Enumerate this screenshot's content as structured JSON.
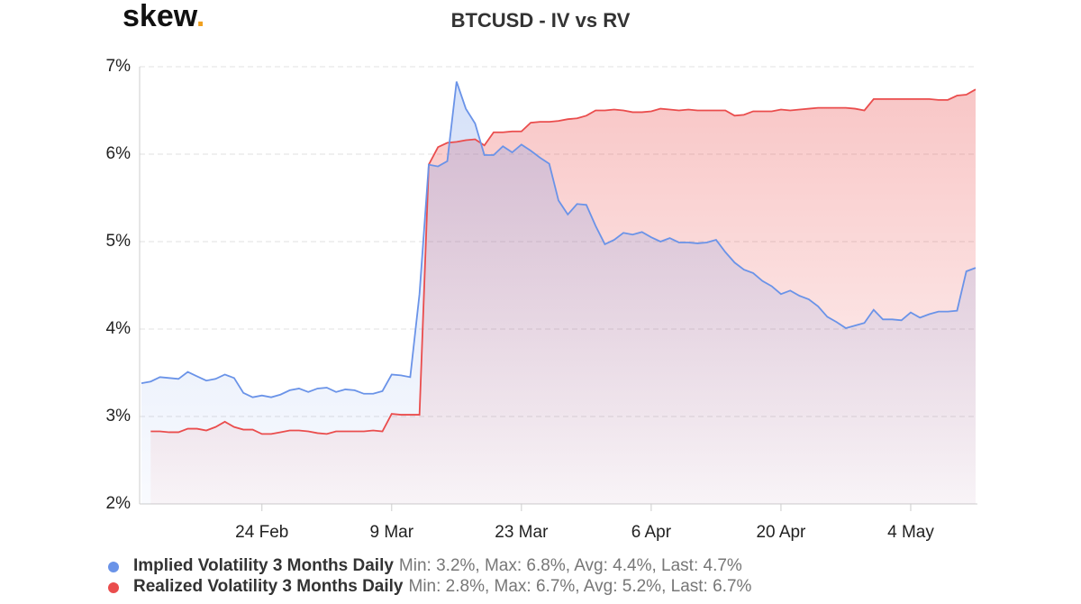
{
  "logo": "skew.",
  "chart_data": {
    "type": "line",
    "title": "BTCUSD - IV vs RV",
    "categories": [
      null,
      null,
      null,
      null,
      null,
      null,
      null,
      null,
      null,
      null,
      null,
      null,
      null,
      "24 Feb",
      null,
      null,
      null,
      null,
      null,
      null,
      null,
      null,
      null,
      null,
      null,
      null,
      null,
      "9 Mar",
      null,
      null,
      null,
      null,
      null,
      null,
      null,
      null,
      null,
      null,
      null,
      null,
      null,
      "23 Mar",
      null,
      null,
      null,
      null,
      null,
      null,
      null,
      null,
      null,
      null,
      null,
      null,
      null,
      "6 Apr",
      null,
      null,
      null,
      null,
      null,
      null,
      null,
      null,
      null,
      null,
      null,
      null,
      null,
      "20 Apr",
      null,
      null,
      null,
      null,
      null,
      null,
      null,
      null,
      null,
      null,
      null,
      null,
      null,
      "4 May",
      null,
      null,
      null,
      null,
      null,
      null,
      null
    ],
    "series": [
      {
        "name": "Implied Volatility 3 Months Daily",
        "stats": "Min: 3.2%, Max: 6.8%, Avg: 4.4%, Last: 4.7%",
        "color": "#6a93e8",
        "values": [
          3.38,
          3.4,
          3.45,
          3.44,
          3.43,
          3.51,
          3.46,
          3.41,
          3.43,
          3.48,
          3.44,
          3.27,
          3.22,
          3.24,
          3.22,
          3.25,
          3.3,
          3.32,
          3.28,
          3.32,
          3.33,
          3.28,
          3.31,
          3.3,
          3.26,
          3.26,
          3.29,
          3.48,
          3.47,
          3.45,
          4.4,
          5.88,
          5.86,
          5.92,
          6.83,
          6.52,
          6.35,
          5.99,
          5.99,
          6.09,
          6.02,
          6.11,
          6.04,
          5.96,
          5.89,
          5.47,
          5.31,
          5.43,
          5.42,
          5.18,
          4.97,
          5.02,
          5.1,
          5.08,
          5.11,
          5.05,
          5.0,
          5.04,
          4.99,
          4.99,
          4.98,
          4.99,
          5.02,
          4.88,
          4.76,
          4.68,
          4.64,
          4.55,
          4.49,
          4.4,
          4.44,
          4.38,
          4.34,
          4.26,
          4.14,
          4.08,
          4.01,
          4.04,
          4.07,
          4.22,
          4.11,
          4.11,
          4.1,
          4.19,
          4.13,
          4.17,
          4.2,
          4.2,
          4.21,
          4.66,
          4.7
        ]
      },
      {
        "name": "Realized Volatility 3 Months Daily",
        "stats": "Min: 2.8%, Max: 6.7%, Avg: 5.2%, Last: 6.7%",
        "color": "#ea4d4d",
        "values": [
          null,
          2.83,
          2.83,
          2.82,
          2.82,
          2.86,
          2.86,
          2.84,
          2.88,
          2.94,
          2.88,
          2.85,
          2.85,
          2.8,
          2.8,
          2.82,
          2.84,
          2.84,
          2.83,
          2.81,
          2.8,
          2.83,
          2.83,
          2.83,
          2.83,
          2.84,
          2.83,
          3.03,
          3.02,
          3.02,
          3.02,
          5.88,
          6.08,
          6.13,
          6.14,
          6.16,
          6.17,
          6.1,
          6.25,
          6.25,
          6.26,
          6.26,
          6.36,
          6.37,
          6.37,
          6.38,
          6.4,
          6.41,
          6.44,
          6.5,
          6.5,
          6.51,
          6.5,
          6.48,
          6.48,
          6.49,
          6.52,
          6.51,
          6.5,
          6.51,
          6.5,
          6.5,
          6.5,
          6.5,
          6.44,
          6.45,
          6.49,
          6.49,
          6.49,
          6.51,
          6.5,
          6.51,
          6.52,
          6.53,
          6.53,
          6.53,
          6.53,
          6.52,
          6.5,
          6.63,
          6.63,
          6.63,
          6.63,
          6.63,
          6.63,
          6.63,
          6.62,
          6.62,
          6.67,
          6.68,
          6.74
        ]
      }
    ],
    "ylim": [
      2,
      7
    ],
    "yticks": [
      {
        "value": 2,
        "label": "2%"
      },
      {
        "value": 3,
        "label": "3%"
      },
      {
        "value": 4,
        "label": "4%"
      },
      {
        "value": 5,
        "label": "5%"
      },
      {
        "value": 6,
        "label": "6%"
      },
      {
        "value": 7,
        "label": "7%"
      }
    ],
    "grid": true,
    "legend": "bottom"
  }
}
